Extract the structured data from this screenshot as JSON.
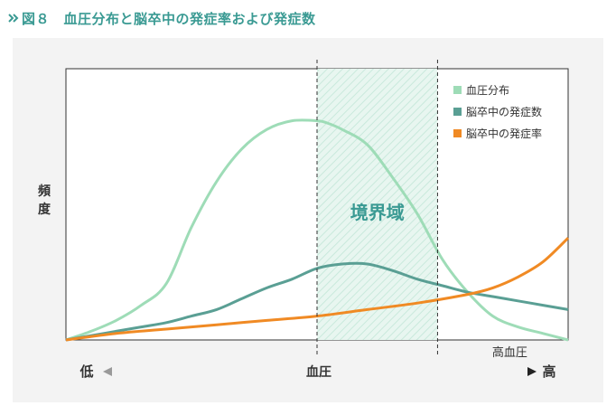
{
  "header": {
    "title": "図８　血圧分布と脳卒中の発症率および発症数",
    "arrow_icon": "double-chevron-right-icon",
    "accent_color": "#3a9a93"
  },
  "chart_data": {
    "type": "line",
    "title": "",
    "ylabel": "頻度",
    "xlabel": "血圧",
    "x_low_label": "低",
    "x_high_label": "高",
    "x_marker_label": "高血圧",
    "band_label": "境界域",
    "xlim": [
      0,
      100
    ],
    "ylim": [
      0,
      100
    ],
    "band": [
      50,
      74
    ],
    "legend_position": "top-right",
    "series": [
      {
        "name": "血圧分布",
        "color": "#9edcb7",
        "x": [
          0,
          5,
          10,
          15,
          20,
          25,
          30,
          35,
          40,
          45,
          50,
          52,
          55,
          60,
          65,
          70,
          75,
          80,
          85,
          90,
          95,
          100
        ],
        "values": [
          0,
          4,
          9,
          16,
          26,
          52,
          73,
          88,
          97,
          101,
          101,
          100,
          97,
          90,
          75,
          58,
          37,
          22,
          11,
          6,
          3,
          0
        ]
      },
      {
        "name": "脳卒中の発症数",
        "color": "#5a9f94",
        "x": [
          0,
          5,
          10,
          15,
          20,
          25,
          30,
          35,
          40,
          45,
          50,
          55,
          60,
          65,
          70,
          75,
          80,
          85,
          90,
          95,
          100
        ],
        "values": [
          0,
          2,
          4,
          6,
          8,
          11,
          14,
          19,
          24,
          28,
          33,
          35,
          35,
          32,
          28,
          25,
          22,
          20,
          18,
          16,
          14
        ]
      },
      {
        "name": "脳卒中の発症率",
        "color": "#f08a24",
        "x": [
          0,
          10,
          20,
          30,
          40,
          50,
          60,
          70,
          80,
          85,
          90,
          95,
          100
        ],
        "values": [
          0,
          3,
          5,
          7,
          9,
          11,
          14,
          17,
          21,
          24,
          29,
          36,
          47
        ]
      }
    ]
  }
}
